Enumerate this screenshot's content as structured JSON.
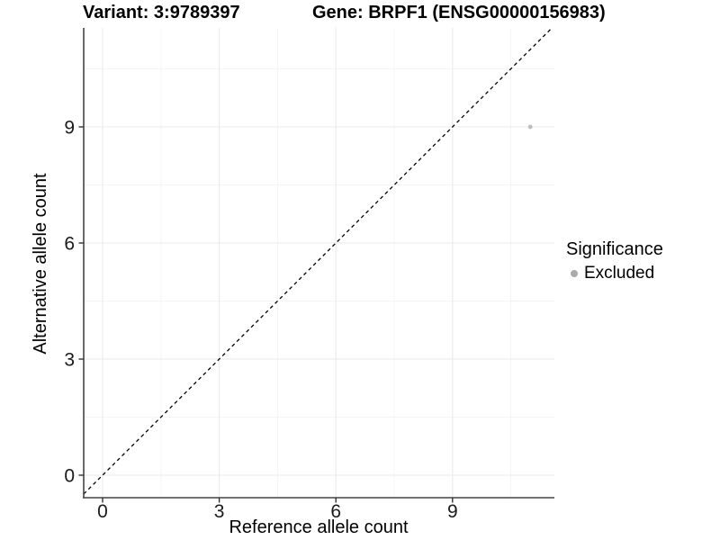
{
  "chart_data": {
    "type": "scatter",
    "title_left": "Variant: 3:9789397",
    "title_right": "Gene: BRPF1 (ENSG00000156983)",
    "xlabel": "Reference allele count",
    "ylabel": "Alternative allele count",
    "xlim": [
      -0.55,
      11.55
    ],
    "ylim": [
      -0.55,
      11.55
    ],
    "xticks": [
      0,
      3,
      6,
      9
    ],
    "yticks": [
      0,
      3,
      6,
      9
    ],
    "minor_ticks_x": [
      1.5,
      4.5,
      7.5,
      10.5
    ],
    "minor_ticks_y": [
      1.5,
      4.5,
      7.5,
      10.5
    ],
    "grid": {
      "major": true,
      "minor": true
    },
    "series": [
      {
        "name": "Excluded",
        "color": "#bdbdbd",
        "point_radius": 2.4,
        "points": [
          {
            "x": 11,
            "y": 9
          }
        ]
      }
    ],
    "reference_line": {
      "type": "identity",
      "slope": 1,
      "intercept": 0,
      "style": "dashed",
      "color": "#000000"
    },
    "legend": {
      "title": "Significance",
      "position": "right",
      "entries": [
        {
          "label": "Excluded",
          "color": "#ababab"
        }
      ]
    }
  },
  "colors": {
    "background": "#ffffff",
    "grid_major": "#eaeaea",
    "grid_minor": "#f4f4f4",
    "axis_line": "#444444",
    "tick_mark": "#333333",
    "text": "#000000"
  }
}
